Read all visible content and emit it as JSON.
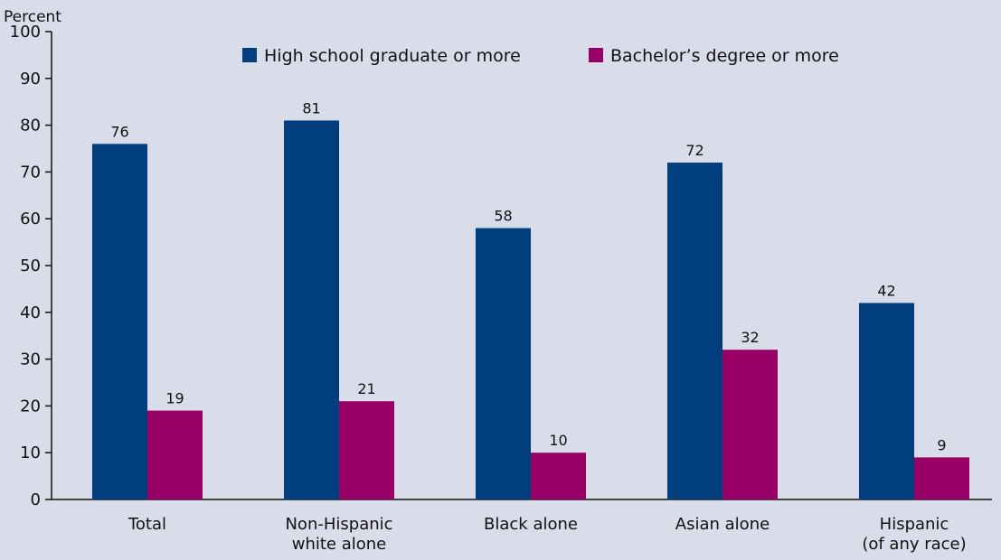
{
  "chart_data": {
    "type": "bar",
    "ylabel": "Percent",
    "ylim": [
      0,
      100
    ],
    "yticks": [
      0,
      10,
      20,
      30,
      40,
      50,
      60,
      70,
      80,
      90,
      100
    ],
    "categories": [
      [
        "Total"
      ],
      [
        "Non-Hispanic",
        "white alone"
      ],
      [
        "Black alone"
      ],
      [
        "Asian alone"
      ],
      [
        "Hispanic",
        "(of any race)"
      ]
    ],
    "series": [
      {
        "name": "High school graduate or more",
        "values": [
          76,
          81,
          58,
          72,
          42
        ],
        "color": "#003e7e"
      },
      {
        "name": "Bachelor’s degree or more",
        "values": [
          19,
          21,
          10,
          32,
          9
        ],
        "color": "#990066"
      }
    ],
    "legend_position": "top",
    "grid": false,
    "background": "#d9dde9"
  }
}
